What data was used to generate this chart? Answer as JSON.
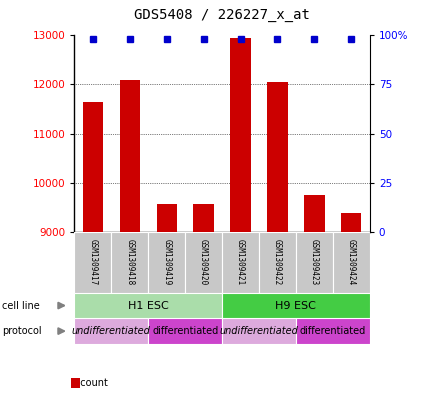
{
  "title": "GDS5408 / 226227_x_at",
  "samples": [
    "GSM1309417",
    "GSM1309418",
    "GSM1309419",
    "GSM1309420",
    "GSM1309421",
    "GSM1309422",
    "GSM1309423",
    "GSM1309424"
  ],
  "counts": [
    11650,
    12100,
    9560,
    9570,
    12950,
    12050,
    9750,
    9380
  ],
  "ylim_left": [
    9000,
    13000
  ],
  "ylim_right": [
    0,
    100
  ],
  "yticks_left": [
    9000,
    10000,
    11000,
    12000,
    13000
  ],
  "yticks_right": [
    0,
    25,
    50,
    75,
    100
  ],
  "cell_line_groups": [
    {
      "label": "H1 ESC",
      "start": 0,
      "end": 3,
      "color": "#aaddaa"
    },
    {
      "label": "H9 ESC",
      "start": 4,
      "end": 7,
      "color": "#44cc44"
    }
  ],
  "protocol_groups": [
    {
      "label": "undifferentiated",
      "start": 0,
      "end": 1,
      "color": "#ddaadd"
    },
    {
      "label": "differentiated",
      "start": 2,
      "end": 3,
      "color": "#cc44cc"
    },
    {
      "label": "undifferentiated",
      "start": 4,
      "end": 5,
      "color": "#ddaadd"
    },
    {
      "label": "differentiated",
      "start": 6,
      "end": 7,
      "color": "#cc44cc"
    }
  ],
  "bar_color": "#cc0000",
  "dot_color": "#0000cc",
  "bar_width": 0.55,
  "sample_box_color": "#c8c8c8",
  "title_fontsize": 10,
  "tick_fontsize": 7.5,
  "label_fontsize": 8,
  "legend_fontsize": 7,
  "cell_line_label_fontsize": 8,
  "protocol_label_fontsize": 7
}
